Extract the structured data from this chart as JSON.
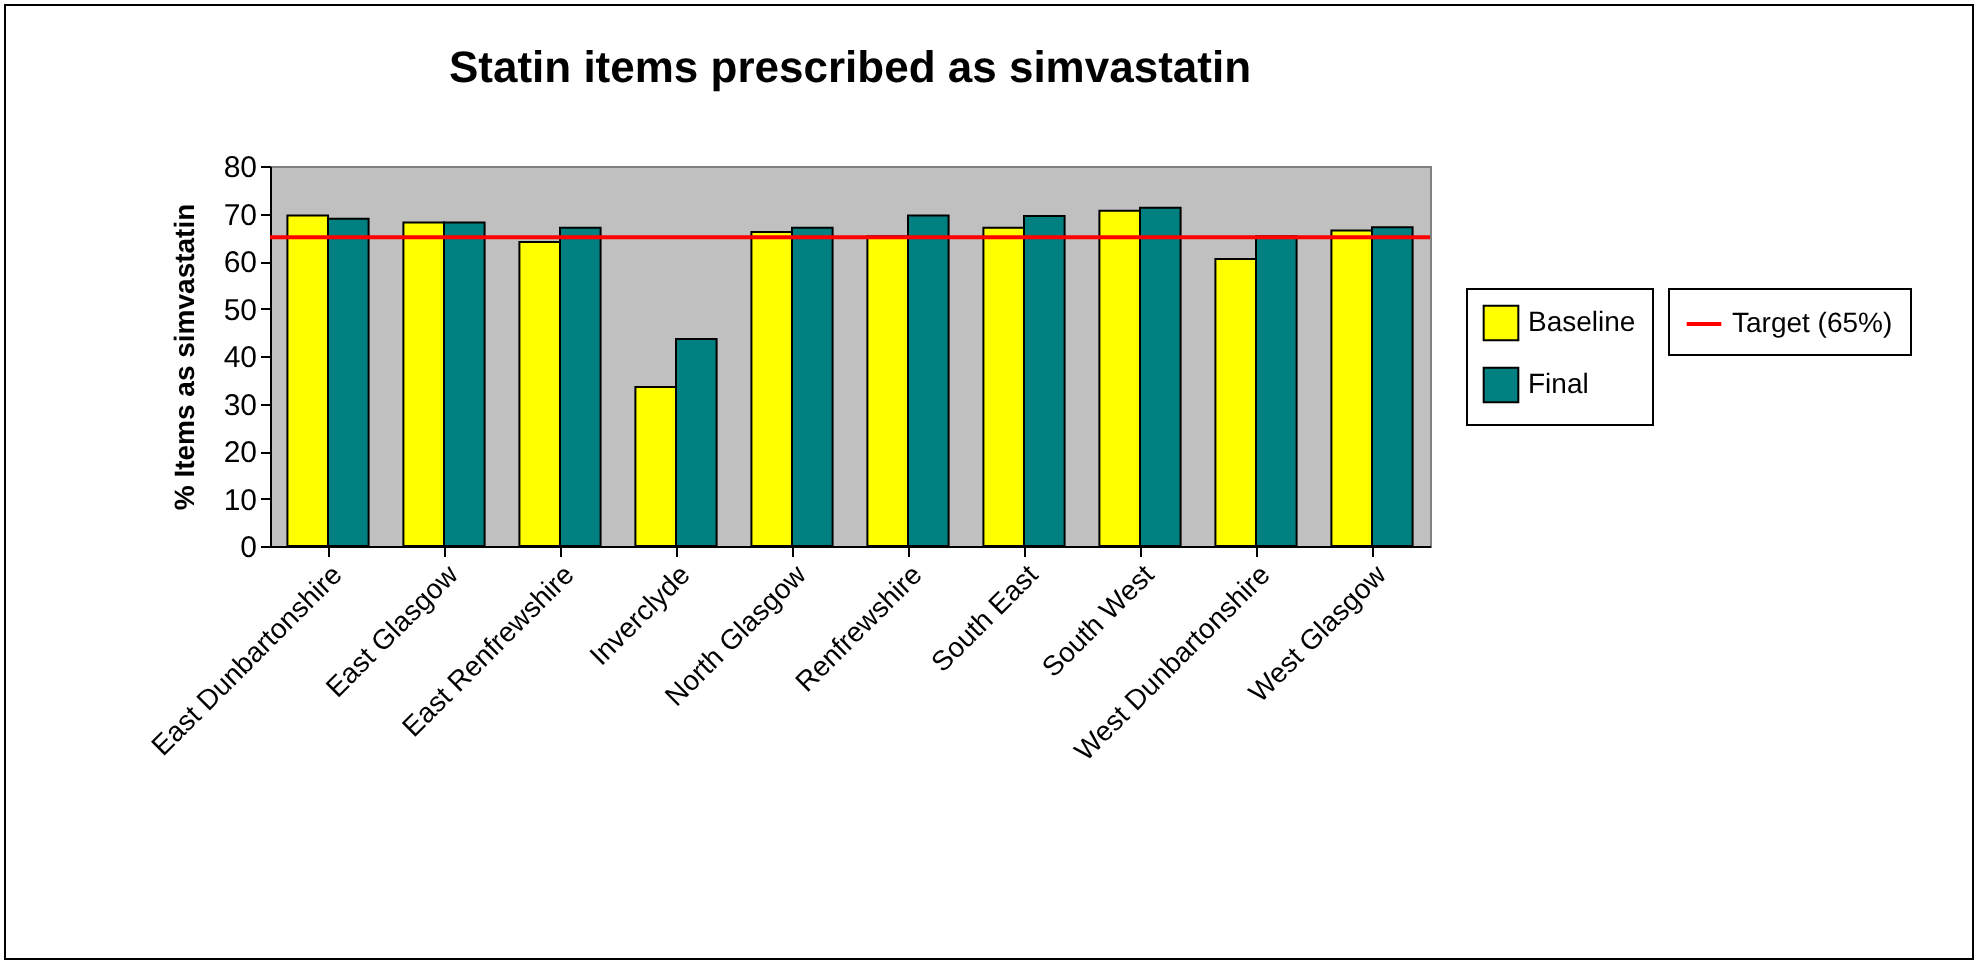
{
  "chart_data": {
    "type": "bar",
    "title": "Statin items prescribed as simvastatin",
    "ylabel": "% Items as simvastatin",
    "categories": [
      "East Dunbartonshire",
      "East Glasgow",
      "East Renfrewshire",
      "Inverclyde",
      "North Glasgow",
      "Renfrewshire",
      "South East",
      "South West",
      "West Dunbartonshire",
      "West Glasgow"
    ],
    "series": [
      {
        "name": "Baseline",
        "color": "#ffff00",
        "values": [
          69.6,
          68.1,
          64.0,
          33.5,
          66.1,
          65.2,
          67.0,
          70.6,
          60.4,
          66.4
        ]
      },
      {
        "name": "Final",
        "color": "#008080",
        "values": [
          68.9,
          68.1,
          67.0,
          43.6,
          67.0,
          69.6,
          69.5,
          71.2,
          65.2,
          67.1
        ]
      }
    ],
    "ylim": [
      0,
      80
    ],
    "yticks": [
      0,
      10,
      20,
      30,
      40,
      50,
      60,
      70,
      80
    ],
    "ref_lines": [
      {
        "axis": "y",
        "value": 65,
        "label": "Target (65%)",
        "color": "#ff0000"
      }
    ],
    "grid": false,
    "legend": "right"
  }
}
